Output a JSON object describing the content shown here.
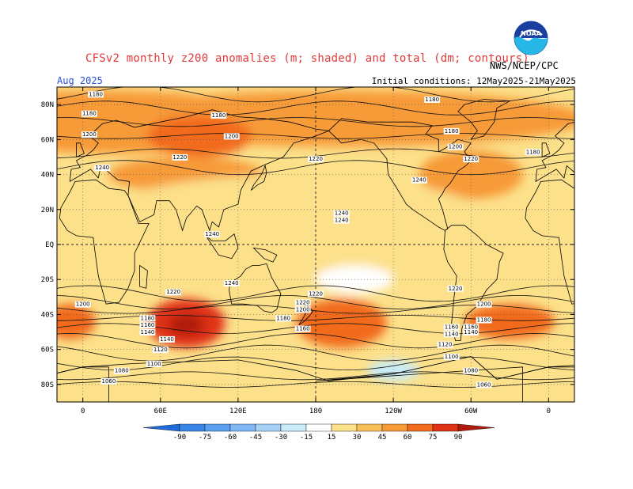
{
  "header": {
    "title": "CFSv2 monthly z200 anomalies (m; shaded) and total (dm; contours)",
    "organization": "NWS/NCEP/CPC",
    "valid_month": "Aug 2025",
    "initial_conditions": "Initial conditions: 12May2025-21May2025",
    "logo_label": "NOAA"
  },
  "axes": {
    "lat_labels": [
      "80N",
      "60N",
      "40N",
      "20N",
      "EQ",
      "20S",
      "40S",
      "60S",
      "80S"
    ],
    "lat_values": [
      80,
      60,
      40,
      20,
      0,
      -20,
      -40,
      -60,
      -80
    ],
    "lon_labels": [
      "0",
      "60E",
      "120E",
      "180",
      "120W",
      "60W",
      "0"
    ],
    "lon_values": [
      0,
      60,
      120,
      180,
      240,
      300,
      360
    ],
    "lon_range": [
      -20,
      380
    ],
    "lat_range": [
      -90,
      90
    ]
  },
  "chart_data": {
    "type": "heatmap",
    "levels": [
      -90,
      -75,
      -60,
      -45,
      -30,
      -15,
      15,
      30,
      45,
      60,
      75,
      90
    ],
    "level_labels": [
      "-90",
      "-75",
      "-60",
      "-45",
      "-30",
      "-15",
      "15",
      "30",
      "45",
      "60",
      "75",
      "90"
    ],
    "colors": [
      "#1e6cd8",
      "#3a86e6",
      "#5a9ff0",
      "#7fb8f4",
      "#a6d2f8",
      "#c8ecf8",
      "#ffffff",
      "#fce08a",
      "#f9c05a",
      "#f79a38",
      "#f26b1e",
      "#e03214",
      "#b01a0e"
    ],
    "anomaly_regions": [
      {
        "lon": 20,
        "lat": 70,
        "rx": 130,
        "ry": 18,
        "value": 45
      },
      {
        "lon": 200,
        "lat": 72,
        "rx": 190,
        "ry": 16,
        "value": 45
      },
      {
        "lon": 90,
        "lat": 62,
        "rx": 40,
        "ry": 12,
        "value": 60
      },
      {
        "lon": 300,
        "lat": 40,
        "rx": 40,
        "ry": 14,
        "value": 45
      },
      {
        "lon": 80,
        "lat": 40,
        "rx": 60,
        "ry": 10,
        "value": 45
      },
      {
        "lon": 160,
        "lat": 10,
        "rx": 160,
        "ry": 30,
        "value": 20
      },
      {
        "lon": 80,
        "lat": -45,
        "rx": 30,
        "ry": 14,
        "value": 75
      },
      {
        "lon": 80,
        "lat": -46,
        "rx": 14,
        "ry": 6,
        "value": 90
      },
      {
        "lon": 200,
        "lat": -45,
        "rx": 35,
        "ry": 14,
        "value": 60
      },
      {
        "lon": 330,
        "lat": -44,
        "rx": 35,
        "ry": 10,
        "value": 60
      },
      {
        "lon": -10,
        "lat": -44,
        "rx": 20,
        "ry": 10,
        "value": 60
      },
      {
        "lon": 240,
        "lat": -72,
        "rx": 20,
        "ry": 6,
        "value": -20
      },
      {
        "lon": 210,
        "lat": -20,
        "rx": 30,
        "ry": 8,
        "value": 0
      }
    ],
    "contour_values": [
      "1180",
      "1180",
      "1180",
      "1180",
      "1200",
      "1200",
      "1240",
      "1220",
      "1220",
      "1220",
      "1180",
      "1200",
      "1180",
      "1240",
      "1240",
      "1240",
      "1240",
      "1220",
      "1220",
      "1220",
      "1200",
      "1200",
      "1180",
      "1160",
      "1140",
      "1120",
      "1100",
      "1080",
      "1060",
      "1160",
      "1140",
      "1180",
      "1160",
      "1140",
      "1120",
      "1100",
      "1080",
      "1060",
      "1200",
      "1180",
      "1160",
      "1140",
      "1220",
      "1240"
    ],
    "contour_label_positions": [
      [
        10,
        86
      ],
      [
        5,
        75
      ],
      [
        105,
        74
      ],
      [
        270,
        83
      ],
      [
        5,
        63
      ],
      [
        115,
        62
      ],
      [
        15,
        44
      ],
      [
        75,
        50
      ],
      [
        180,
        49
      ],
      [
        300,
        49
      ],
      [
        285,
        65
      ],
      [
        288,
        56
      ],
      [
        348,
        53
      ],
      [
        260,
        37
      ],
      [
        200,
        18
      ],
      [
        100,
        6
      ],
      [
        115,
        -22
      ],
      [
        70,
        -27
      ],
      [
        180,
        -28
      ],
      [
        170,
        -33
      ],
      [
        170,
        -37
      ],
      [
        0,
        -34
      ],
      [
        155,
        -42
      ],
      [
        170,
        -48
      ],
      [
        65,
        -54
      ],
      [
        60,
        -60
      ],
      [
        55,
        -68
      ],
      [
        30,
        -72
      ],
      [
        20,
        -78
      ],
      [
        50,
        -46
      ],
      [
        50,
        -50
      ],
      [
        50,
        -42
      ],
      [
        285,
        -47
      ],
      [
        285,
        -51
      ],
      [
        280,
        -57
      ],
      [
        285,
        -64
      ],
      [
        300,
        -72
      ],
      [
        310,
        -80
      ],
      [
        310,
        -34
      ],
      [
        310,
        -43
      ],
      [
        300,
        -47
      ],
      [
        300,
        -50
      ],
      [
        288,
        -25
      ],
      [
        200,
        14
      ]
    ]
  },
  "colorbar": {
    "labels": [
      "-90",
      "-75",
      "-60",
      "-45",
      "-30",
      "-15",
      "15",
      "30",
      "45",
      "60",
      "75",
      "90"
    ]
  }
}
